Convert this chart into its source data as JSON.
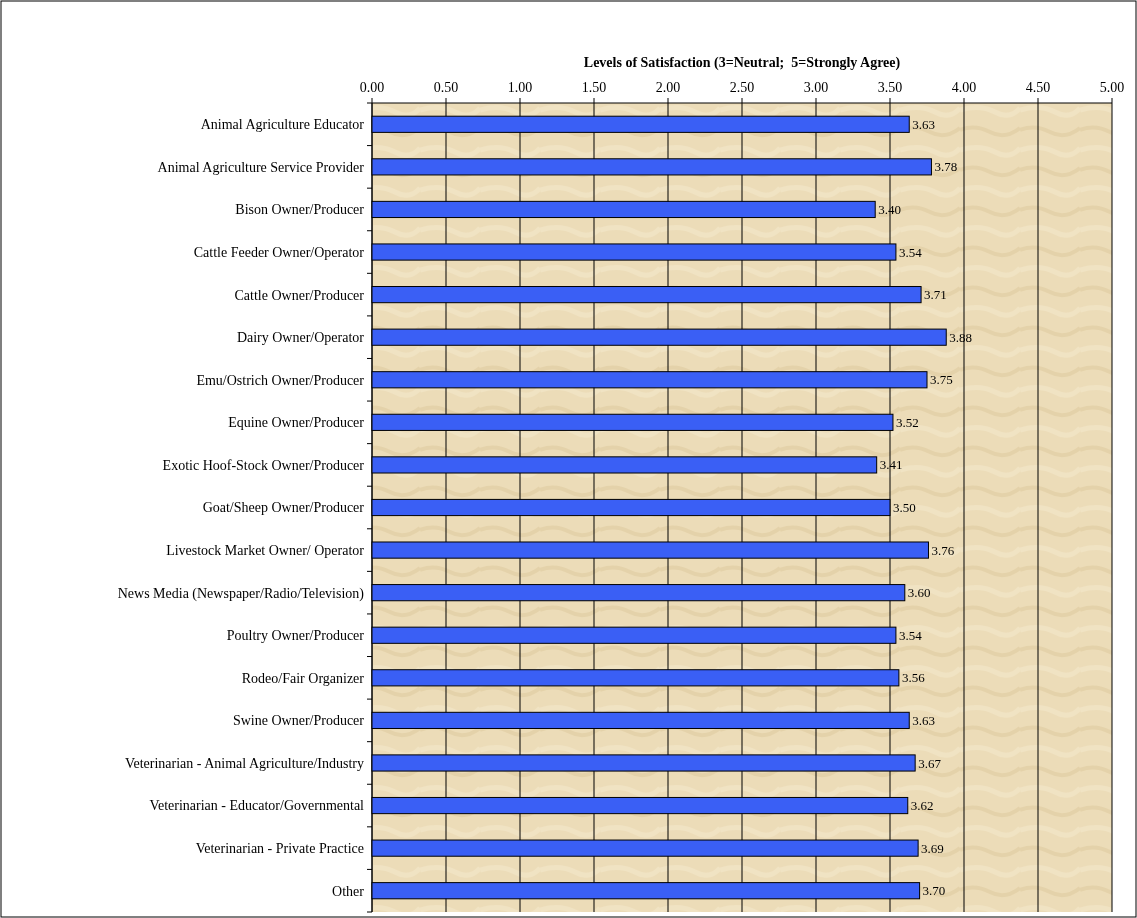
{
  "chart_data": {
    "type": "bar",
    "orientation": "horizontal",
    "xlabel": "Levels of Satisfaction (3=Neutral;  5=Strongly Agree)",
    "categories": [
      "Animal Agriculture Educator",
      "Animal Agriculture Service Provider",
      "Bison Owner/Producer",
      "Cattle Feeder Owner/Operator",
      "Cattle Owner/Producer",
      "Dairy Owner/Operator",
      "Emu/Ostrich Owner/Producer",
      "Equine Owner/Producer",
      "Exotic Hoof-Stock Owner/Producer",
      "Goat/Sheep Owner/Producer",
      "Livestock Market Owner/ Operator",
      "News Media (Newspaper/Radio/Television)",
      "Poultry Owner/Producer",
      "Rodeo/Fair Organizer",
      "Swine Owner/Producer",
      "Veterinarian - Animal Agriculture/Industry",
      "Veterinarian - Educator/Governmental",
      "Veterinarian - Private Practice",
      "Other"
    ],
    "values": [
      3.63,
      3.78,
      3.4,
      3.54,
      3.71,
      3.88,
      3.75,
      3.52,
      3.41,
      3.5,
      3.76,
      3.6,
      3.54,
      3.56,
      3.63,
      3.67,
      3.62,
      3.69,
      3.7
    ],
    "color": "#3a5ff5",
    "xlim": [
      0,
      5
    ],
    "xticks": [
      {
        "value": 0,
        "label": "0.00"
      },
      {
        "value": 0.5,
        "label": "0.50"
      },
      {
        "value": 1,
        "label": "1.00"
      },
      {
        "value": 1.5,
        "label": "1.50"
      },
      {
        "value": 2,
        "label": "2.00"
      },
      {
        "value": 2.5,
        "label": "2.50"
      },
      {
        "value": 3,
        "label": "3.00"
      },
      {
        "value": 3.5,
        "label": "3.50"
      },
      {
        "value": 4,
        "label": "4.00"
      },
      {
        "value": 4.5,
        "label": "4.50"
      },
      {
        "value": 5,
        "label": "5.00"
      }
    ],
    "value_labels": [
      "3.63",
      "3.78",
      "3.40",
      "3.54",
      "3.71",
      "3.88",
      "3.75",
      "3.52",
      "3.41",
      "3.50",
      "3.76",
      "3.60",
      "3.54",
      "3.56",
      "3.63",
      "3.67",
      "3.62",
      "3.69",
      "3.70"
    ],
    "grid": "x"
  }
}
